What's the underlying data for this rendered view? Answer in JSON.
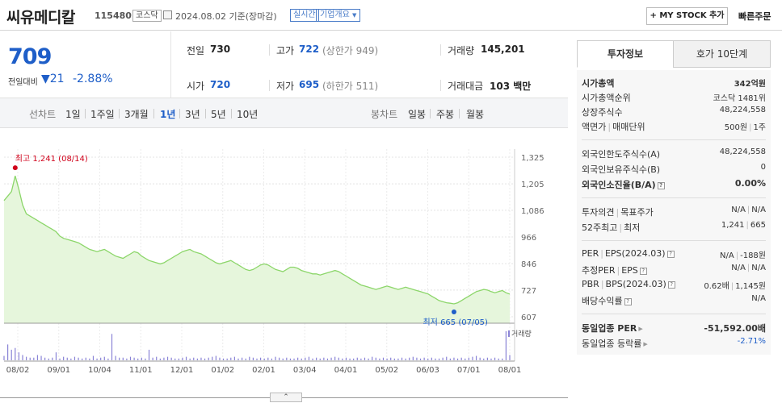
{
  "header": {
    "name": "씨유메디칼",
    "code": "115480",
    "market": "코스닥",
    "date": "2024.08.02",
    "basis": "기준(장마감)",
    "live": "실시간",
    "company_overview": "기업개요",
    "mystock": "+ MY STOCK 추가",
    "quick_order": "빠른주문"
  },
  "price": {
    "current": "709",
    "change_label": "전일대비",
    "change_value": "▼21",
    "change_pct": "-2.88%"
  },
  "stats": {
    "prev_label": "전일",
    "prev": "730",
    "high_label": "고가",
    "high": "722",
    "upper_limit": "(상한가 949)",
    "volume_label": "거래량",
    "volume": "145,201",
    "open_label": "시가",
    "open": "720",
    "low_label": "저가",
    "low": "695",
    "lower_limit": "(하한가 511)",
    "amount_label": "거래대금",
    "amount": "103 백만"
  },
  "toolbar": {
    "line_label": "선차트",
    "periods": [
      "1일",
      "1주일",
      "3개월",
      "1년",
      "3년",
      "5년",
      "10년"
    ],
    "active_period": "1년",
    "candle_label": "봉차트",
    "candles": [
      "일봉",
      "주봉",
      "월봉"
    ]
  },
  "chart_data": {
    "type": "area",
    "y_ticks": [
      "1,325",
      "1,205",
      "1,086",
      "966",
      "846",
      "727",
      "607"
    ],
    "x_ticks": [
      "08/02",
      "09/01",
      "10/04",
      "11/01",
      "12/01",
      "01/02",
      "02/01",
      "03/04",
      "04/01",
      "05/02",
      "06/03",
      "07/01",
      "08/01"
    ],
    "ylim": [
      607,
      1325
    ],
    "high_label": "최고 1,241 (08/14)",
    "low_label": "최저 665 (07/05)",
    "volume_label": "거래량",
    "color": "#8cd66a",
    "prices": [
      1130,
      1150,
      1170,
      1241,
      1180,
      1110,
      1070,
      1060,
      1050,
      1040,
      1030,
      1020,
      1010,
      1000,
      990,
      970,
      960,
      955,
      950,
      945,
      940,
      930,
      920,
      910,
      905,
      900,
      905,
      910,
      900,
      890,
      880,
      875,
      870,
      880,
      890,
      900,
      895,
      880,
      870,
      860,
      855,
      850,
      845,
      850,
      860,
      870,
      880,
      890,
      900,
      905,
      910,
      900,
      895,
      890,
      880,
      870,
      860,
      850,
      845,
      850,
      855,
      860,
      850,
      840,
      830,
      820,
      815,
      820,
      830,
      840,
      845,
      840,
      830,
      820,
      815,
      810,
      820,
      830,
      830,
      825,
      815,
      810,
      805,
      800,
      800,
      795,
      800,
      805,
      810,
      815,
      810,
      800,
      790,
      780,
      770,
      760,
      750,
      745,
      740,
      735,
      730,
      735,
      740,
      745,
      740,
      735,
      730,
      735,
      740,
      735,
      730,
      725,
      720,
      715,
      710,
      700,
      690,
      680,
      675,
      670,
      668,
      665,
      670,
      680,
      690,
      700,
      710,
      720,
      725,
      730,
      727,
      720,
      715,
      720,
      725,
      715,
      709
    ],
    "volumes": [
      5,
      18,
      12,
      14,
      9,
      6,
      4,
      3,
      3,
      6,
      5,
      3,
      2,
      3,
      9,
      2,
      4,
      3,
      2,
      4,
      3,
      2,
      3,
      2,
      5,
      2,
      3,
      4,
      2,
      30,
      5,
      3,
      3,
      2,
      4,
      3,
      2,
      3,
      2,
      12,
      3,
      4,
      2,
      3,
      4,
      3,
      2,
      2,
      3,
      4,
      2,
      3,
      2,
      3,
      2,
      3,
      4,
      5,
      3,
      2,
      2,
      3,
      4,
      2,
      3,
      2,
      4,
      3,
      2,
      3,
      2,
      3,
      2,
      4,
      3,
      2,
      3,
      2,
      2,
      3,
      2,
      3,
      4,
      2,
      3,
      2,
      3,
      2,
      3,
      4,
      3,
      2,
      3,
      2,
      2,
      3,
      2,
      3,
      2,
      4,
      3,
      2,
      3,
      2,
      3,
      2,
      2,
      3,
      2,
      3,
      4,
      3,
      2,
      3,
      2,
      3,
      2,
      2,
      3,
      4,
      2,
      3,
      2,
      3,
      2,
      3,
      4,
      5,
      3,
      2,
      3,
      2,
      3,
      2,
      2,
      33,
      6
    ]
  },
  "tabs": {
    "info": "투자정보",
    "orderbook": "호가 10단계"
  },
  "info": {
    "mcap_label": "시가총액",
    "mcap": "342억원",
    "rank_label": "시가총액순위",
    "rank": "코스닥 1481위",
    "shares_label": "상장주식수",
    "shares": "48,224,558",
    "par_label": "액면가",
    "unit_label": "매매단위",
    "par": "500원",
    "unit": "1주",
    "foreign_limit_label": "외국인한도주식수(A)",
    "foreign_limit": "48,224,558",
    "foreign_hold_label": "외국인보유주식수(B)",
    "foreign_hold": "0",
    "foreign_ratio_label": "외국인소진율(B/A)",
    "foreign_ratio": "0.00%",
    "opinion_label": "투자의견",
    "target_label": "목표주가",
    "opinion": "N/A",
    "target": "N/A",
    "w52_label": "52주최고",
    "w52_low_label": "최저",
    "w52_high": "1,241",
    "w52_low": "665",
    "per_label": "PER",
    "eps_label": "EPS(2024.03)",
    "per": "N/A",
    "eps": "-188원",
    "est_per_label": "추정PER",
    "est_eps_label": "EPS",
    "est_per": "N/A",
    "est_eps": "N/A",
    "pbr_label": "PBR",
    "bps_label": "BPS(2024.03)",
    "pbr": "0.62배",
    "bps": "1,145원",
    "div_label": "배당수익률",
    "div": "N/A",
    "ind_per_label": "동일업종 PER",
    "ind_per": "-51,592.00배",
    "ind_chg_label": "동일업종 등락률",
    "ind_chg": "-2.71%"
  },
  "scroll_up": "⌃"
}
